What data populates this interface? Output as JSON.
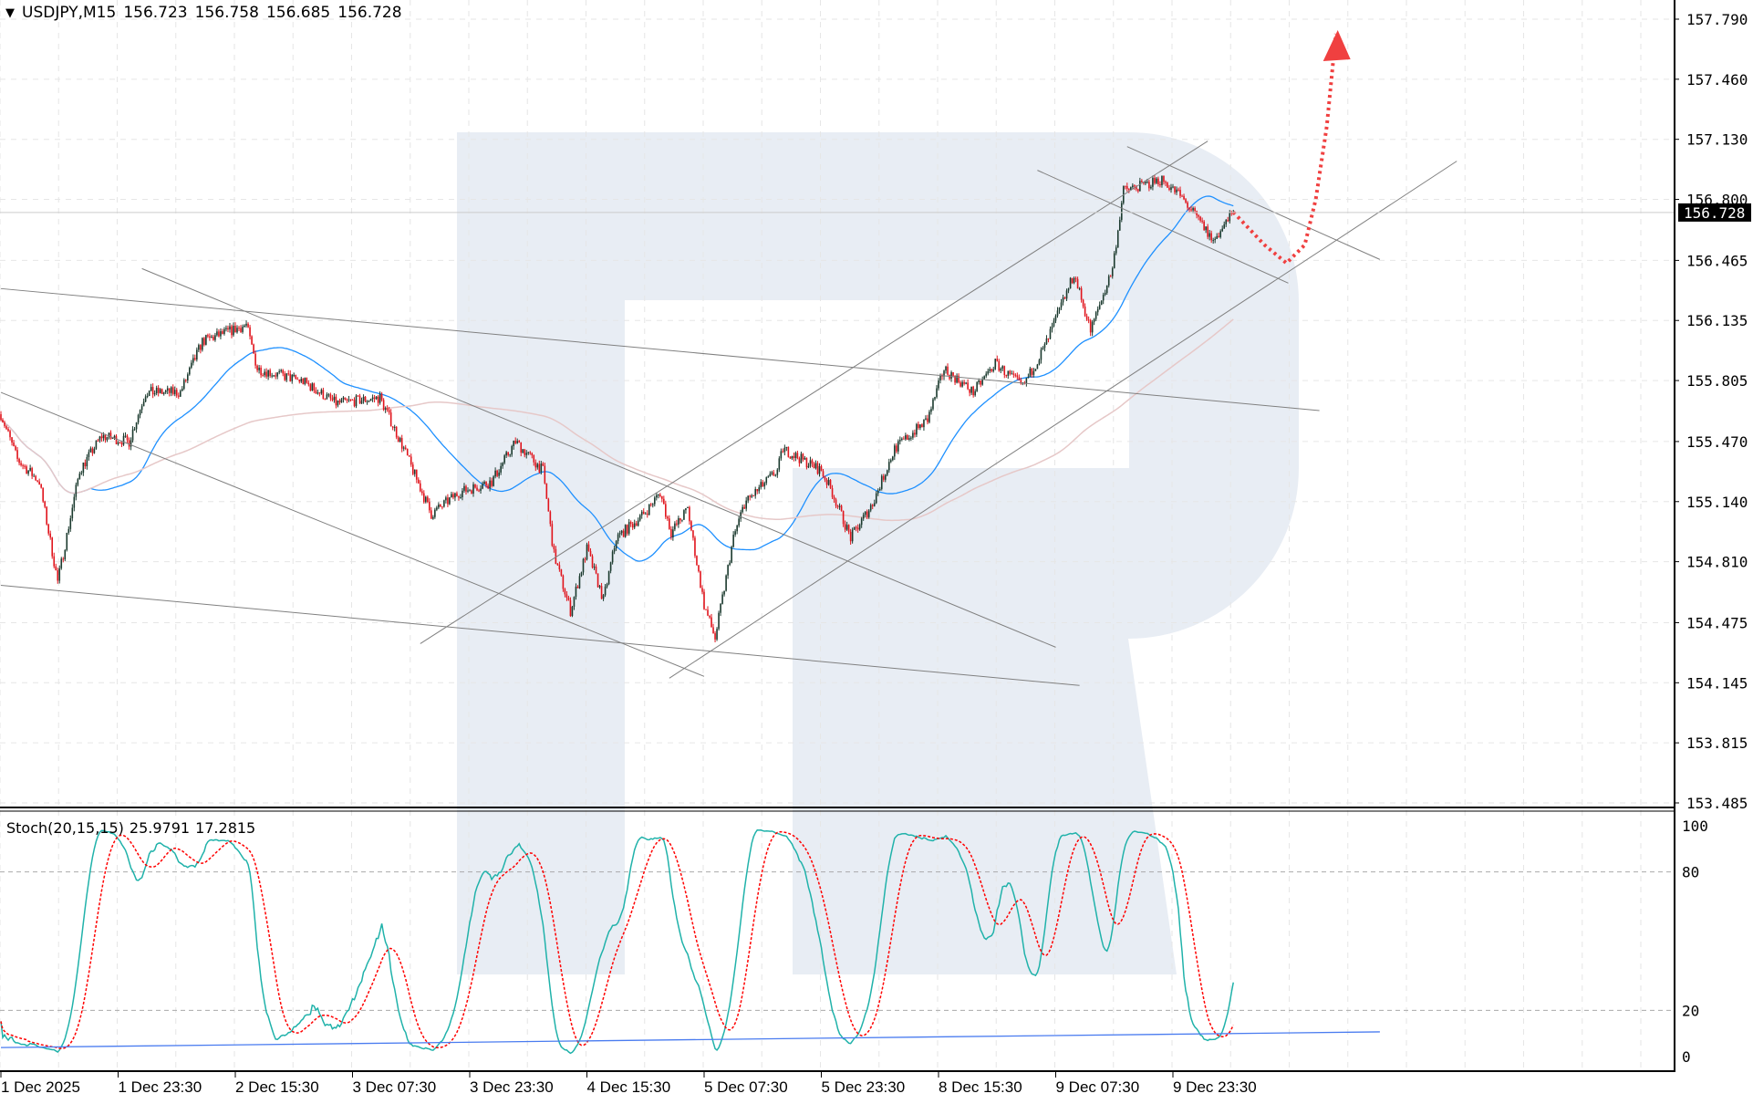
{
  "header": {
    "symbol": "USDJPY,M15",
    "open": "156.723",
    "high": "156.758",
    "low": "156.685",
    "close": "156.728"
  },
  "stoch_header": {
    "label": "Stoch(20,15,15)",
    "k": "25.9791",
    "d": "17.2815"
  },
  "current_price_label": "156.728",
  "colors": {
    "bull": "#1b3a2e",
    "bear": "#e0141c",
    "ma_fast": "#1e90ff",
    "ma_slow": "#e6c8c8",
    "stoch_k": "#20b2aa",
    "stoch_d": "#ff0000",
    "trendline": "#808080",
    "forecast": "#f04040",
    "watermark": "#e8edf4",
    "support": "#4a7cf0"
  },
  "chart_data": {
    "type": "candlestick",
    "timeframe": "M15",
    "ylim": [
      153.485,
      157.79
    ],
    "price_ticks": [
      "157.790",
      "157.460",
      "157.130",
      "156.800",
      "156.465",
      "156.135",
      "155.805",
      "155.470",
      "155.140",
      "154.810",
      "154.475",
      "154.145",
      "153.815",
      "153.485"
    ],
    "time_labels": [
      "1 Dec 2025",
      "1 Dec 23:30",
      "2 Dec 15:30",
      "3 Dec 07:30",
      "3 Dec 23:30",
      "4 Dec 15:30",
      "5 Dec 07:30",
      "5 Dec 23:30",
      "8 Dec 15:30",
      "9 Dec 07:30",
      "9 Dec 23:30"
    ],
    "bars_per_label": 64,
    "price_path": [
      [
        0,
        155.62
      ],
      [
        9,
        155.37
      ],
      [
        21,
        155.25
      ],
      [
        31,
        154.7
      ],
      [
        43,
        155.31
      ],
      [
        55,
        155.5
      ],
      [
        70,
        155.47
      ],
      [
        79,
        155.74
      ],
      [
        98,
        155.74
      ],
      [
        110,
        156.02
      ],
      [
        134,
        156.11
      ],
      [
        140,
        155.87
      ],
      [
        165,
        155.8
      ],
      [
        183,
        155.68
      ],
      [
        207,
        155.71
      ],
      [
        220,
        155.43
      ],
      [
        235,
        155.07
      ],
      [
        250,
        155.19
      ],
      [
        268,
        155.25
      ],
      [
        281,
        155.47
      ],
      [
        296,
        155.31
      ],
      [
        302,
        154.85
      ],
      [
        311,
        154.54
      ],
      [
        320,
        154.88
      ],
      [
        329,
        154.6
      ],
      [
        336,
        154.94
      ],
      [
        351,
        155.07
      ],
      [
        360,
        155.19
      ],
      [
        366,
        154.97
      ],
      [
        375,
        155.1
      ],
      [
        384,
        154.57
      ],
      [
        390,
        154.39
      ],
      [
        400,
        154.94
      ],
      [
        406,
        155.13
      ],
      [
        424,
        155.31
      ],
      [
        427,
        155.43
      ],
      [
        448,
        155.31
      ],
      [
        454,
        155.19
      ],
      [
        464,
        154.94
      ],
      [
        476,
        155.13
      ],
      [
        488,
        155.43
      ],
      [
        506,
        155.59
      ],
      [
        515,
        155.87
      ],
      [
        531,
        155.74
      ],
      [
        543,
        155.9
      ],
      [
        558,
        155.77
      ],
      [
        570,
        155.99
      ],
      [
        586,
        156.39
      ],
      [
        595,
        156.08
      ],
      [
        607,
        156.42
      ],
      [
        613,
        156.85
      ],
      [
        625,
        156.88
      ],
      [
        634,
        156.91
      ],
      [
        644,
        156.82
      ],
      [
        656,
        156.66
      ],
      [
        662,
        156.57
      ],
      [
        673,
        156.728
      ]
    ],
    "trendlines": [
      [
        [
          229,
          154.36
        ],
        [
          659,
          157.12
        ]
      ],
      [
        [
          365,
          154.17
        ],
        [
          795,
          157.01
        ]
      ],
      [
        [
          77,
          156.42
        ],
        [
          576,
          154.34
        ]
      ],
      [
        [
          0,
          155.74
        ],
        [
          384,
          154.18
        ]
      ],
      [
        [
          0,
          156.31
        ],
        [
          720,
          155.64
        ]
      ],
      [
        [
          0,
          154.68
        ],
        [
          589,
          154.13
        ]
      ],
      [
        [
          615,
          157.09
        ],
        [
          753,
          156.47
        ]
      ],
      [
        [
          566,
          156.96
        ],
        [
          703,
          156.34
        ]
      ]
    ],
    "forecast_path": [
      [
        673,
        156.73
      ],
      [
        690,
        156.55
      ],
      [
        702,
        156.45
      ],
      [
        712,
        156.55
      ],
      [
        718,
        156.8
      ],
      [
        724,
        157.2
      ],
      [
        729,
        157.71
      ]
    ],
    "stoch": {
      "k_period": 20,
      "d_period": 15,
      "slowing": 15,
      "levels": [
        80,
        20
      ],
      "ylim": [
        0,
        100
      ],
      "ticks": [
        "100",
        "80",
        "20",
        "0"
      ],
      "support_line": [
        [
          0,
          3.9
        ],
        [
          753,
          10.7
        ]
      ]
    },
    "ma_periods": [
      50,
      200
    ]
  }
}
